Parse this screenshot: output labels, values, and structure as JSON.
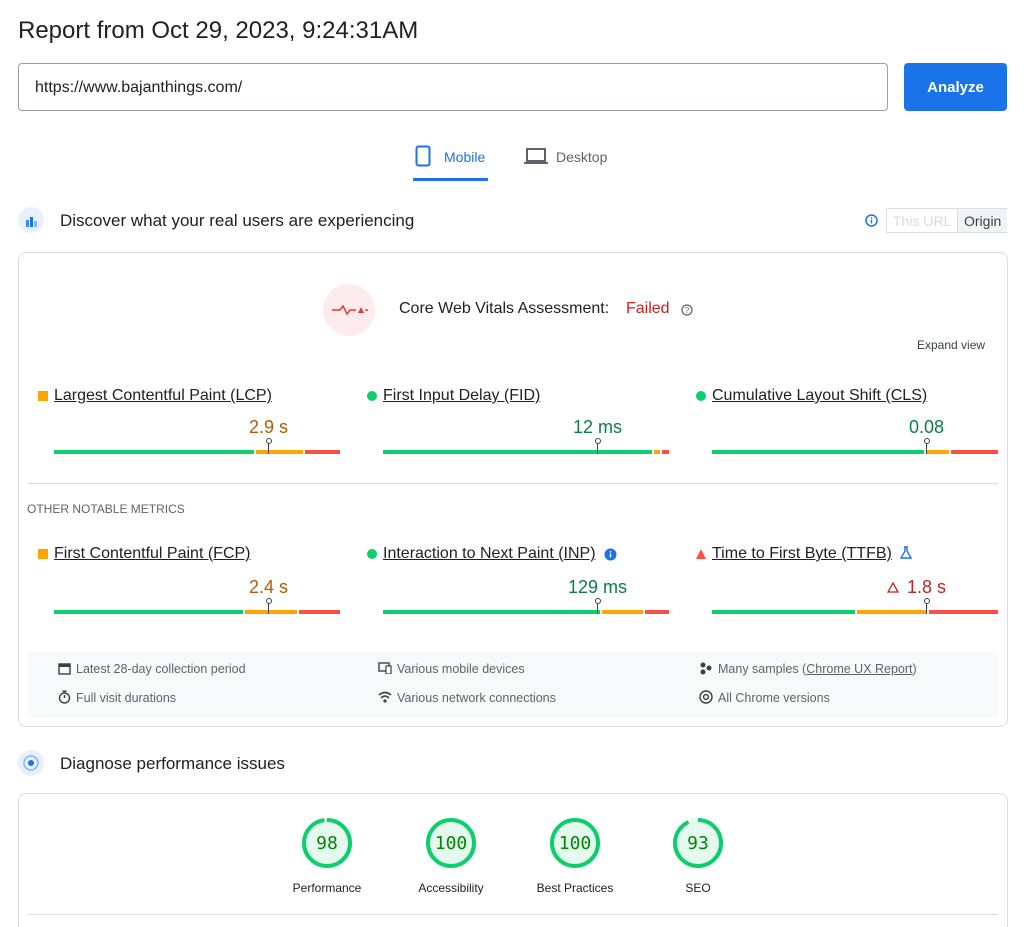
{
  "header": {
    "title": "Report from Oct 29, 2023, 9:24:31AM",
    "url": "https://www.bajanthings.com/",
    "button": "Analyze"
  },
  "tabs": [
    "Mobile",
    "Desktop"
  ],
  "field": {
    "title": "Discover what your real users are experiencing",
    "toggle": [
      "This URL",
      "Origin"
    ],
    "assessment_label": "Core Web Vitals Assessment:",
    "assessment_status": "Failed",
    "expand": "Expand view",
    "core_metrics": [
      {
        "name": "Largest Contentful Paint (LCP)",
        "value": "2.9 s"
      },
      {
        "name": "First Input Delay (FID)",
        "value": "12 ms"
      },
      {
        "name": "Cumulative Layout Shift (CLS)",
        "value": "0.08"
      }
    ],
    "other_heading": "OTHER NOTABLE METRICS",
    "other_metrics": [
      {
        "name": "First Contentful Paint (FCP)",
        "value": "2.4 s"
      },
      {
        "name": "Interaction to Next Paint (INP)",
        "value": "129 ms"
      },
      {
        "name": "Time to First Byte (TTFB)",
        "value": "1.8 s"
      }
    ],
    "footer": {
      "period": "Latest 28-day collection period",
      "devices": "Various mobile devices",
      "samples_prefix": "Many samples (",
      "samples_link": "Chrome UX Report",
      "samples_suffix": ")",
      "durations": "Full visit durations",
      "network": "Various network connections",
      "versions": "All Chrome versions"
    }
  },
  "diagnose": {
    "title": "Diagnose performance issues",
    "scores": [
      {
        "label": "Performance",
        "value": 98
      },
      {
        "label": "Accessibility",
        "value": 100
      },
      {
        "label": "Best Practices",
        "value": 100
      },
      {
        "label": "SEO",
        "value": 93
      }
    ]
  }
}
